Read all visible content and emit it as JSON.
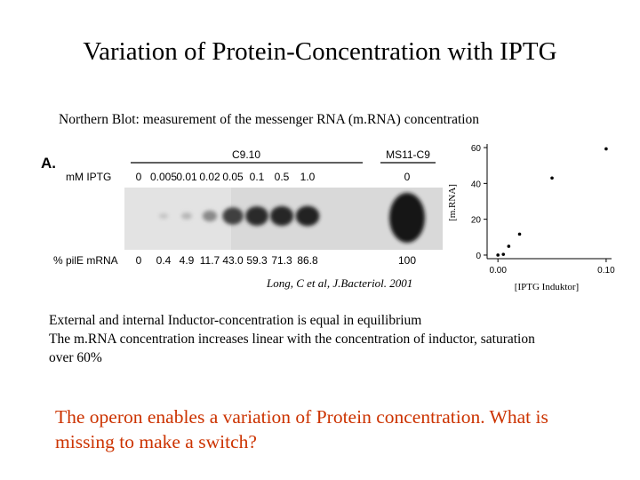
{
  "title": "Variation of Protein-Concentration with IPTG",
  "subtitle": "Northern Blot: measurement of the  messenger RNA (m.RNA) concentration",
  "figure": {
    "panel_label": "A.",
    "group_c910": "C9.10",
    "group_ms11": "MS11-C9",
    "row_iptg_label": "mM IPTG",
    "iptg_values": [
      "0",
      "0.005",
      "0.01",
      "0.02",
      "0.05",
      "0.1",
      "0.5",
      "1.0",
      "0"
    ],
    "row_mrna_label": "% pilE mRNA",
    "mrna_values": [
      "0",
      "0.4",
      "4.9",
      "11.7",
      "43.0",
      "59.3",
      "71.3",
      "86.8",
      "100"
    ],
    "band_intensity": [
      0,
      0.02,
      0.1,
      0.35,
      0.75,
      0.88,
      0.9,
      0.93,
      1.0
    ]
  },
  "chart_data": {
    "type": "scatter",
    "xlabel": "[IPTG Induktor]",
    "ylabel": "[m.RNA]",
    "xticks": [
      "0.00",
      "0.10"
    ],
    "yticks": [
      "0",
      "20",
      "40",
      "60"
    ],
    "xlim": [
      -0.01,
      0.105
    ],
    "ylim": [
      -2,
      62
    ],
    "series": [
      {
        "points": [
          [
            0,
            0
          ],
          [
            0.005,
            0.4
          ],
          [
            0.01,
            4.9
          ],
          [
            0.02,
            11.7
          ],
          [
            0.05,
            43.0
          ],
          [
            0.1,
            59.3
          ]
        ]
      }
    ],
    "grid": false
  },
  "citation": "Long, C et al, J.Bacteriol. 2001",
  "observations": [
    "External and internal Inductor-concentration is equal in equilibrium",
    "The m.RNA concentration increases linear with the concentration of inductor, saturation",
    "over 60%"
  ],
  "question_lines": [
    "The operon enables a variation of Protein concentration. What is",
    "missing to make a switch?"
  ]
}
